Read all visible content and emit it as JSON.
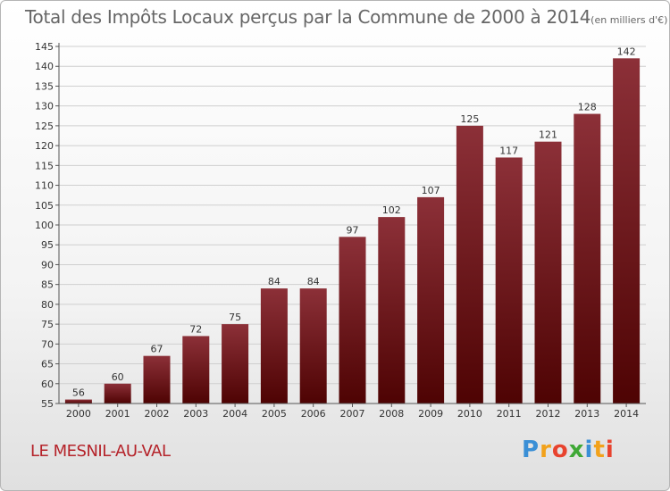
{
  "title": {
    "main": "Total des Impôts Locaux perçus par la Commune de 2000 à 2014",
    "unit": "(en milliers d'€)"
  },
  "commune": "LE MESNIL-AU-VAL",
  "logo": {
    "text": "Proxiti",
    "letters": [
      {
        "ch": "P",
        "color": "#3a8fd6"
      },
      {
        "ch": "r",
        "color": "#f2a21b"
      },
      {
        "ch": "o",
        "color": "#e8432e"
      },
      {
        "ch": "x",
        "color": "#3fa836"
      },
      {
        "ch": "i",
        "color": "#3a8fd6"
      },
      {
        "ch": "t",
        "color": "#f2a21b"
      },
      {
        "ch": "i",
        "color": "#e8432e"
      }
    ]
  },
  "colors": {
    "bar_top": "#8c3038",
    "bar_bottom": "#4e0303",
    "grid": "#cfcfcf",
    "axis": "#555555",
    "text": "#333333"
  },
  "chart_data": {
    "type": "bar",
    "title": "Total des Impôts Locaux perçus par la Commune de 2000 à 2014",
    "categories": [
      "2000",
      "2001",
      "2002",
      "2003",
      "2004",
      "2005",
      "2006",
      "2007",
      "2008",
      "2009",
      "2010",
      "2011",
      "2012",
      "2013",
      "2014"
    ],
    "values": [
      56,
      60,
      67,
      72,
      75,
      84,
      84,
      97,
      102,
      107,
      125,
      117,
      121,
      128,
      142
    ],
    "ylim": [
      55,
      145
    ],
    "yticks": [
      55,
      60,
      65,
      70,
      75,
      80,
      85,
      90,
      95,
      100,
      105,
      110,
      115,
      120,
      125,
      130,
      135,
      140,
      145
    ],
    "grid": true,
    "data_labels": true
  }
}
